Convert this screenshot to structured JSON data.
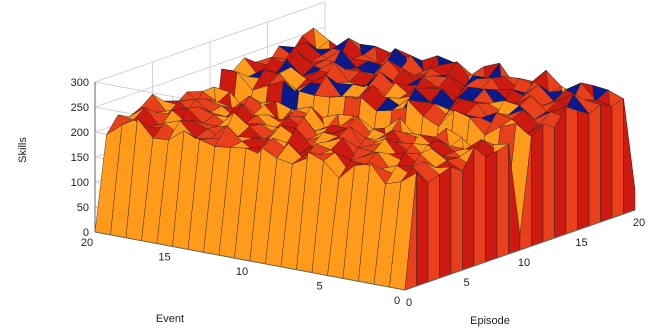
{
  "chart_data": {
    "type": "surface",
    "title": "",
    "xlabel": "Episode",
    "ylabel": "Event",
    "zlabel": "Skills",
    "xlim": [
      0,
      20
    ],
    "ylim": [
      0,
      20
    ],
    "zlim": [
      0,
      300
    ],
    "x_ticks": [
      "0",
      "5",
      "10",
      "15",
      "20"
    ],
    "y_ticks": [
      "0",
      "5",
      "10",
      "15",
      "20"
    ],
    "z_ticks": [
      "0",
      "50",
      "100",
      "150",
      "200",
      "250",
      "300"
    ],
    "grid": true,
    "colormap": [
      "#ffff33",
      "#ff9a1a",
      "#e8401a",
      "#cc1a10",
      "#0a1a8a"
    ],
    "x": [
      0,
      1,
      2,
      3,
      4,
      5,
      6,
      7,
      8,
      9,
      10,
      11,
      12,
      13,
      14,
      15,
      16,
      17,
      18,
      19,
      20
    ],
    "y": [
      0,
      1,
      2,
      3,
      4,
      5,
      6,
      7,
      8,
      9,
      10,
      11,
      12,
      13,
      14,
      15,
      16,
      17,
      18,
      19,
      20
    ],
    "z_profile_by_episode": [
      0,
      210,
      215,
      208,
      220,
      212,
      218,
      206,
      214,
      209,
      30,
      225,
      230,
      228,
      235,
      232,
      238,
      230,
      240,
      236,
      40
    ]
  }
}
